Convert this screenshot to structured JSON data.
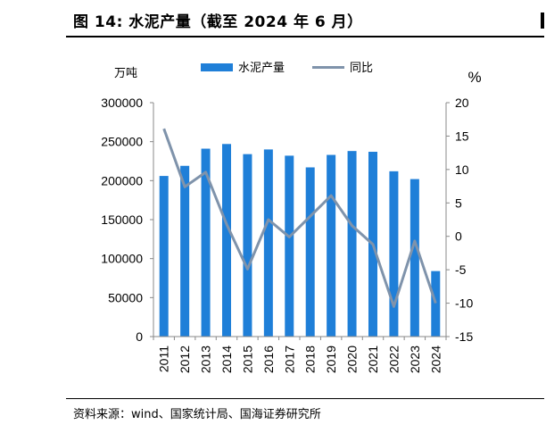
{
  "title": "图 14:  水泥产量（截至 2024 年 6 月）",
  "source": "资料来源：wind、国家统计局、国海证券研究所",
  "chart_data": {
    "type": "bar",
    "categories": [
      "2011",
      "2012",
      "2013",
      "2014",
      "2015",
      "2016",
      "2017",
      "2018",
      "2019",
      "2020",
      "2021",
      "2022",
      "2023",
      "2024"
    ],
    "series": [
      {
        "name": "水泥产量",
        "type": "bar",
        "axis": "left",
        "color": "#1f7fd8",
        "values": [
          206000,
          219000,
          241000,
          247000,
          234000,
          240000,
          232000,
          217000,
          233000,
          238000,
          237000,
          212000,
          202000,
          84000
        ]
      },
      {
        "name": "同比",
        "type": "line",
        "axis": "right",
        "color": "#7f93ab",
        "values": [
          16.1,
          7.4,
          9.6,
          1.8,
          -4.9,
          2.5,
          -0.1,
          3.0,
          6.1,
          1.6,
          -1.2,
          -10.5,
          -0.7,
          -10.0
        ]
      }
    ],
    "y_left": {
      "unit_label": "万吨",
      "ylim": [
        0,
        300000
      ],
      "ticks": [
        "0",
        "50000",
        "100000",
        "150000",
        "200000",
        "250000",
        "300000"
      ]
    },
    "y_right": {
      "unit_label": "%",
      "ylim": [
        -15,
        20
      ],
      "ticks": [
        "-15",
        "-10",
        "-5",
        "0",
        "5",
        "10",
        "15",
        "20"
      ]
    },
    "legend_position": "top",
    "grid": false
  }
}
